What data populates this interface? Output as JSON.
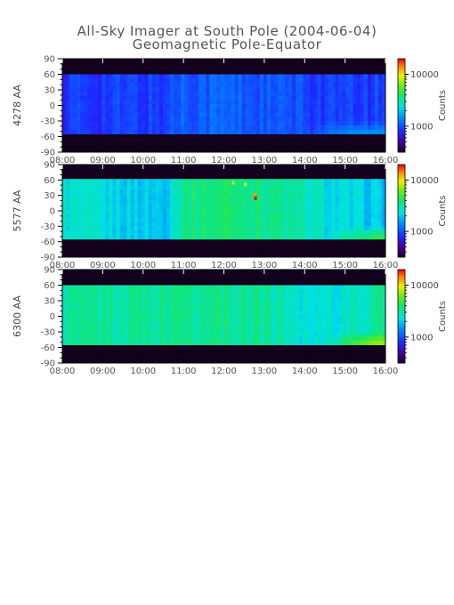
{
  "title": "All-Sky Imager at South Pole (2004-06-04)",
  "subtitle": "Geomagnetic Pole-Equator",
  "chart_data": [
    {
      "type": "heatmap",
      "ylabel": "4278 AA",
      "x_ticks": [
        "08:00",
        "09:00",
        "10:00",
        "11:00",
        "12:00",
        "13:00",
        "14:00",
        "15:00",
        "16:00"
      ],
      "y_ticks": [
        90,
        60,
        30,
        0,
        -30,
        -60,
        -90
      ],
      "xlim": [
        "08:00",
        "16:00"
      ],
      "ylim": [
        -90,
        90
      ],
      "data_lat_range": [
        -55,
        60
      ],
      "colorbar": {
        "label": "Counts",
        "ticks": [
          1000,
          10000
        ],
        "scale": "log"
      },
      "color_profile": {
        "times": [
          8,
          10.5,
          11,
          12,
          13,
          14,
          15,
          16
        ],
        "log_counts": [
          0.24,
          0.25,
          0.3,
          0.3,
          0.28,
          0.26,
          0.24,
          0.25
        ],
        "south_bright_from": 14.0,
        "south_bright_level": 0.38
      }
    },
    {
      "type": "heatmap",
      "ylabel": "5577 AA",
      "x_ticks": [
        "08:00",
        "09:00",
        "10:00",
        "11:00",
        "12:00",
        "13:00",
        "14:00",
        "15:00",
        "16:00"
      ],
      "y_ticks": [
        90,
        60,
        30,
        0,
        -30,
        -60,
        -90
      ],
      "xlim": [
        "08:00",
        "16:00"
      ],
      "ylim": [
        -90,
        90
      ],
      "data_lat_range": [
        -55,
        62
      ],
      "colorbar": {
        "label": "Counts",
        "ticks": [
          1000,
          10000
        ],
        "scale": "log"
      },
      "color_profile": {
        "times": [
          8,
          9.5,
          10.5,
          11,
          12,
          13,
          14,
          15,
          16
        ],
        "log_counts": [
          0.5,
          0.46,
          0.44,
          0.58,
          0.6,
          0.58,
          0.52,
          0.46,
          0.44
        ],
        "south_bright_from": 14.5,
        "south_bright_level": 0.66
      }
    },
    {
      "type": "heatmap",
      "ylabel": "6300 AA",
      "x_ticks": [
        "08:00",
        "09:00",
        "10:00",
        "11:00",
        "12:00",
        "13:00",
        "14:00",
        "15:00",
        "16:00"
      ],
      "y_ticks": [
        90,
        60,
        30,
        0,
        -30,
        -60,
        -90
      ],
      "xlim": [
        "08:00",
        "16:00"
      ],
      "ylim": [
        -90,
        90
      ],
      "data_lat_range": [
        -55,
        60
      ],
      "colorbar": {
        "label": "Counts",
        "ticks": [
          1000,
          10000
        ],
        "scale": "log"
      },
      "color_profile": {
        "times": [
          8,
          10,
          11,
          12,
          13,
          14,
          15,
          16
        ],
        "log_counts": [
          0.55,
          0.56,
          0.57,
          0.57,
          0.56,
          0.5,
          0.5,
          0.56
        ],
        "south_bright_from": 14.5,
        "south_bright_level": 0.78
      }
    }
  ]
}
